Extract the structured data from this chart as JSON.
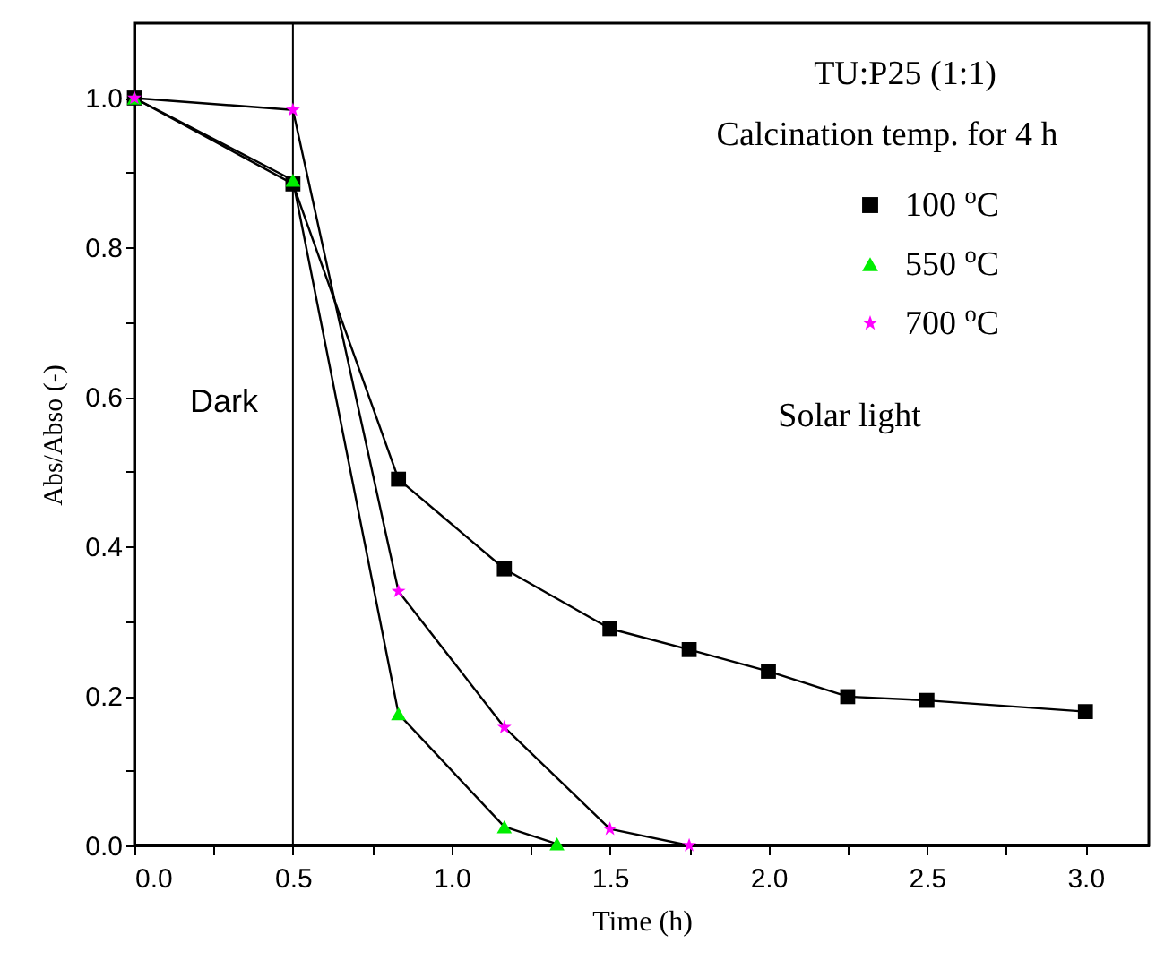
{
  "chart_data": {
    "type": "line",
    "xlabel": "Time (h)",
    "ylabel": "Abs/Abso (-)",
    "annotations": [
      "TU:P25 (1:1)",
      "Calcination temp. for 4 h",
      "Dark",
      "Solar light"
    ],
    "series": [
      {
        "name": "100 $^{o}$C",
        "color": "#000000",
        "marker": "square",
        "x": [
          0,
          0.5,
          0.833,
          1.167,
          1.5,
          1.75,
          2.0,
          2.25,
          2.5,
          3.0
        ],
        "values": [
          1.0,
          0.885,
          0.49,
          0.37,
          0.29,
          0.262,
          0.233,
          0.199,
          0.194,
          0.179
        ]
      },
      {
        "name": "550 $^{o}$C",
        "color": "#00ee00",
        "marker": "triangle",
        "x": [
          0,
          0.5,
          0.833,
          1.167,
          1.333
        ],
        "values": [
          1.0,
          0.89,
          0.176,
          0.025,
          0.002
        ]
      },
      {
        "name": "700 $^{o}$C",
        "color": "#ff00ff",
        "marker": "star",
        "x": [
          0,
          0.5,
          0.833,
          1.167,
          1.5,
          1.75
        ],
        "values": [
          1.0,
          0.984,
          0.34,
          0.158,
          0.022,
          0.0
        ]
      }
    ],
    "xlim": [
      0,
      3.2
    ],
    "xticks": [
      {
        "value": 0,
        "label": "0.0"
      },
      {
        "value": 0.25,
        "label": null
      },
      {
        "value": 0.5,
        "label": "0.5"
      },
      {
        "value": 0.75,
        "label": null
      },
      {
        "value": 1,
        "label": "1.0"
      },
      {
        "value": 1.25,
        "label": null
      },
      {
        "value": 1.5,
        "label": "1.5"
      },
      {
        "value": 1.75,
        "label": null
      },
      {
        "value": 2,
        "label": "2.0"
      },
      {
        "value": 2.25,
        "label": null
      },
      {
        "value": 2.5,
        "label": "2.5"
      },
      {
        "value": 2.75,
        "label": null
      },
      {
        "value": 3,
        "label": "3.0"
      }
    ],
    "ylim": [
      0,
      1.1
    ],
    "yticks": [
      {
        "value": 0,
        "label": "0.0"
      },
      {
        "value": 0.1,
        "label": null
      },
      {
        "value": 0.2,
        "label": "0.2"
      },
      {
        "value": 0.3,
        "label": null
      },
      {
        "value": 0.4,
        "label": "0.4"
      },
      {
        "value": 0.5,
        "label": null
      },
      {
        "value": 0.6,
        "label": "0.6"
      },
      {
        "value": 0.7,
        "label": null
      },
      {
        "value": 0.8,
        "label": "0.8"
      },
      {
        "value": 0.9,
        "label": null
      },
      {
        "value": 1,
        "label": "1.0"
      }
    ],
    "ref_lines": [
      {
        "axis": "x",
        "value": 0.5,
        "color": "#000000"
      }
    ],
    "legend": "top right",
    "grid": false
  }
}
